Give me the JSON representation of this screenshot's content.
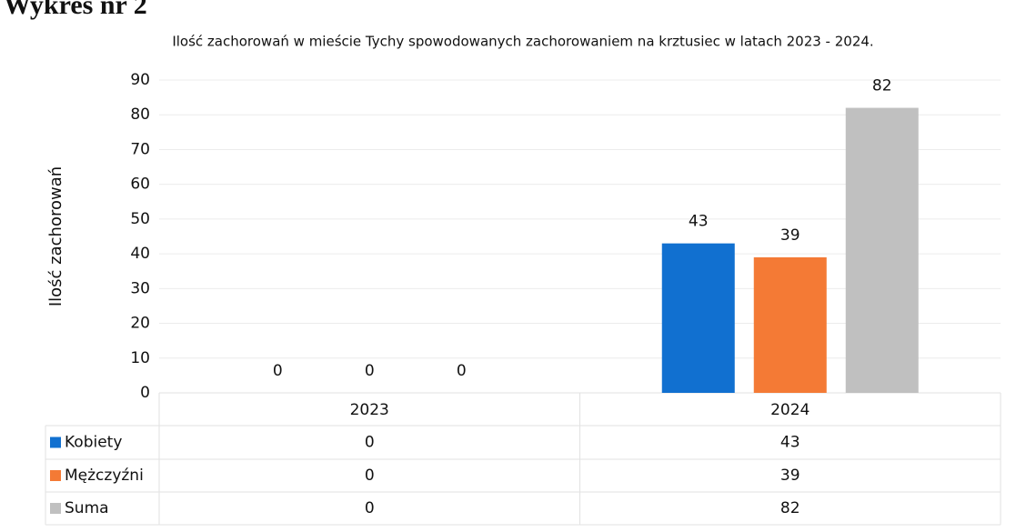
{
  "heading": "Wykres nr 2",
  "chart_data": {
    "type": "bar",
    "title": "Ilość zachorowań w mieście Tychy spowodowanych zachorowaniem na krztusiec  w latach 2023 - 2024.",
    "ylabel": "Ilość zachorowań",
    "categories": [
      "2023",
      "2024"
    ],
    "series": [
      {
        "name": "Kobiety",
        "color": "#1170d0",
        "values": [
          0,
          43
        ]
      },
      {
        "name": "Mężczyźni",
        "color": "#f47a35",
        "values": [
          0,
          39
        ]
      },
      {
        "name": "Suma",
        "color": "#c0c0c0",
        "values": [
          0,
          82
        ]
      }
    ],
    "ylim": [
      0,
      90
    ],
    "yticks": [
      0,
      10,
      20,
      30,
      40,
      50,
      60,
      70,
      80,
      90
    ],
    "grid": true
  }
}
